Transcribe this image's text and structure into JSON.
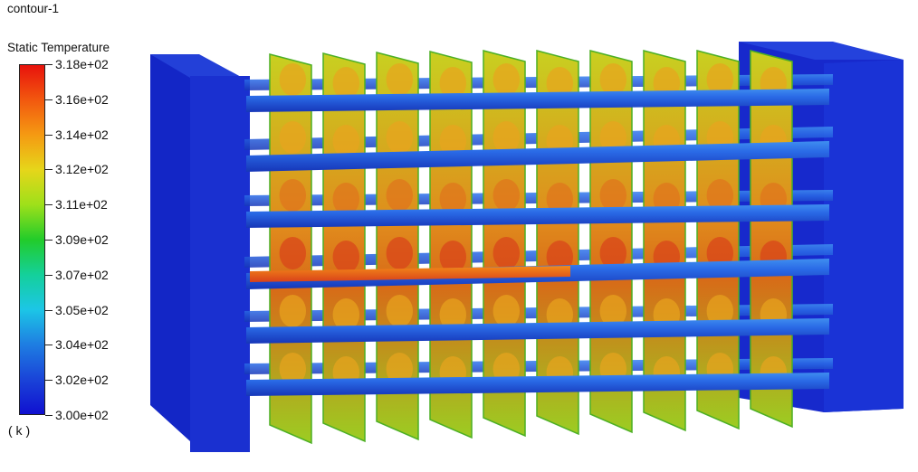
{
  "legend": {
    "title_line1": "contour-1",
    "title_line2": "Static Temperature",
    "ticks": [
      "3.18e+02",
      "3.16e+02",
      "3.14e+02",
      "3.12e+02",
      "3.11e+02",
      "3.09e+02",
      "3.07e+02",
      "3.05e+02",
      "3.04e+02",
      "3.02e+02",
      "3.00e+02"
    ],
    "unit": "( k )",
    "colormap": [
      "#e8120c",
      "#f2580f",
      "#f59a12",
      "#e6d61a",
      "#9ee01a",
      "#22cc2a",
      "#14d09a",
      "#1cc6e6",
      "#1e7ee2",
      "#1a44d8",
      "#1010d0"
    ]
  },
  "scene": {
    "colors": {
      "block": "#1a2fd0",
      "block_shade": "#1526b0",
      "tube": "#1e58d8",
      "fin_edge": "#4caf24"
    }
  }
}
